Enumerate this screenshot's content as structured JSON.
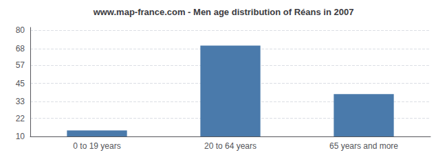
{
  "chart_data": {
    "type": "bar",
    "title": "www.map-france.com - Men age distribution of Réans in 2007",
    "categories": [
      "0 to 19 years",
      "20 to 64 years",
      "65 years and more"
    ],
    "values": [
      14,
      70,
      38
    ],
    "color": "#4a7aab",
    "ylim": [
      10,
      82
    ],
    "yticks": [
      10,
      22,
      33,
      45,
      57,
      68,
      80
    ],
    "grid": true
  }
}
